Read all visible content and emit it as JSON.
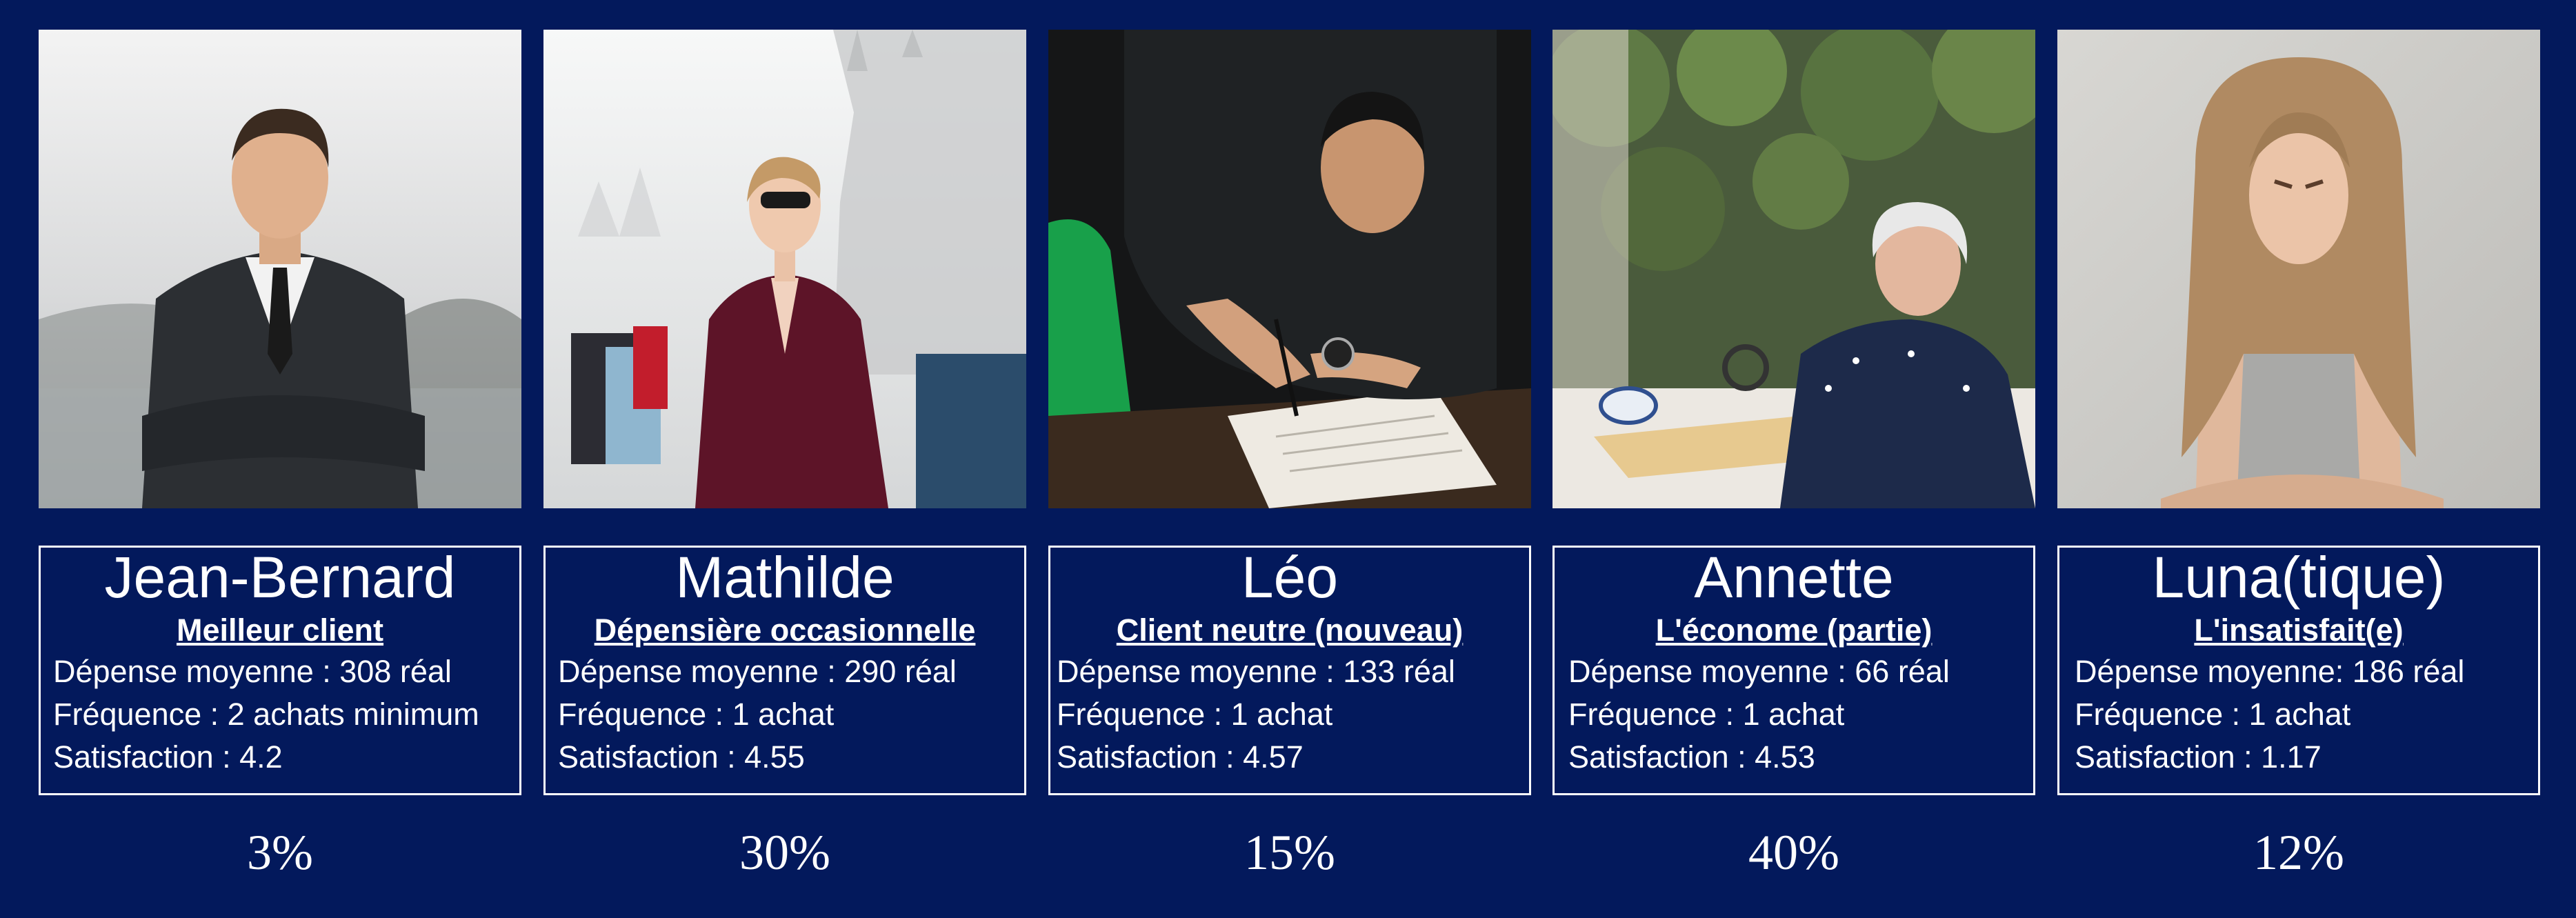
{
  "personas": [
    {
      "photo_icon": "businessman-arms-crossed-photo",
      "name": "Jean-Bernard",
      "role": "Meilleur client",
      "spend": "Dépense moyenne : 308 réal",
      "frequency": "Fréquence : 2 achats minimum",
      "satisfaction": "Satisfaction : 4.2",
      "share": "3%"
    },
    {
      "photo_icon": "woman-with-shopping-bags-photo",
      "name": "Mathilde",
      "role": "Dépensière occasionnelle",
      "spend": "Dépense moyenne : 290 réal",
      "frequency": "Fréquence : 1 achat",
      "satisfaction": "Satisfaction : 4.55",
      "share": "30%"
    },
    {
      "photo_icon": "man-writing-in-notebook-photo",
      "name": "Léo",
      "role": "Client neutre (nouveau)",
      "spend": "Dépense moyenne : 133 réal",
      "frequency": "Fréquence : 1 achat",
      "satisfaction": "Satisfaction : 4.57",
      "share": "15%"
    },
    {
      "photo_icon": "elderly-woman-reading-magnifier-photo",
      "name": "Annette",
      "role": "L'économe (partie)",
      "spend": "Dépense moyenne : 66 réal",
      "frequency": "Fréquence : 1 achat",
      "satisfaction": "Satisfaction : 4.53",
      "share": "40%"
    },
    {
      "photo_icon": "angry-woman-arms-crossed-photo",
      "name": "Luna(tique)",
      "role": "L'insatisfait(e)",
      "spend": "Dépense moyenne: 186 réal",
      "frequency": "Fréquence : 1 achat",
      "satisfaction": "Satisfaction : 1.17",
      "share": "12%"
    }
  ],
  "colors": {
    "background": "#03195c",
    "text": "#ffffff",
    "border": "#ffffff"
  }
}
